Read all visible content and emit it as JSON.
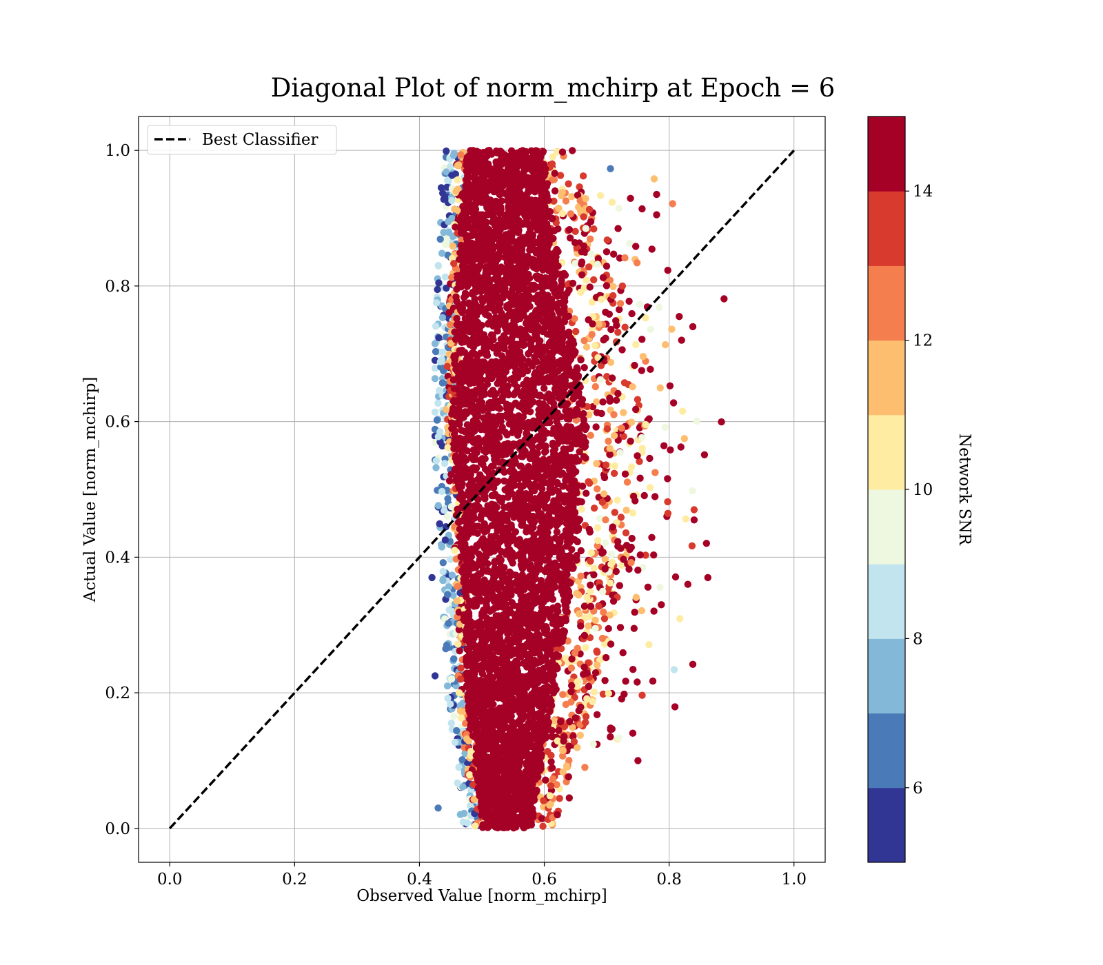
{
  "chart_data": {
    "type": "scatter",
    "title": "Diagonal Plot of norm_mchirp at Epoch = 6",
    "xlabel": "Observed Value [norm_mchirp]",
    "ylabel": "Actual Value [norm_mchirp]",
    "xlim": [
      -0.05,
      1.05
    ],
    "ylim": [
      -0.05,
      1.05
    ],
    "x_ticks": [
      "0.0",
      "0.2",
      "0.4",
      "0.6",
      "0.8",
      "1.0"
    ],
    "y_ticks": [
      "0.0",
      "0.2",
      "0.4",
      "0.6",
      "0.8",
      "1.0"
    ],
    "grid": true,
    "legend": {
      "placement": "top-left",
      "entries": [
        {
          "label": "Best Classifier",
          "style": "dashed-black-line"
        }
      ]
    },
    "reference_line": {
      "name": "Best Classifier",
      "x": [
        0.0,
        1.0
      ],
      "y": [
        0.0,
        1.0
      ],
      "color": "#000000",
      "style": "dashed"
    },
    "colorbar": {
      "label": "Network SNR",
      "range": [
        5,
        15
      ],
      "ticks": [
        "6",
        "8",
        "10",
        "12",
        "14"
      ],
      "bin_colors": [
        "#313695",
        "#4a7ab7",
        "#84b8d8",
        "#c1e4ef",
        "#eef8e0",
        "#feeca2",
        "#fdbe70",
        "#f57e4e",
        "#d83a2e",
        "#a50026"
      ]
    },
    "scatter_summary": {
      "description_points": [
        {
          "region": "dense core",
          "x_center_by_y": [
            [
              0.0,
              0.54
            ],
            [
              0.2,
              0.545
            ],
            [
              0.4,
              0.56
            ],
            [
              0.6,
              0.56
            ],
            [
              0.8,
              0.545
            ],
            [
              1.0,
              0.535
            ]
          ],
          "x_halfwidth_by_y": [
            [
              0.0,
              0.05
            ],
            [
              0.2,
              0.09
            ],
            [
              0.4,
              0.12
            ],
            [
              0.6,
              0.14
            ],
            [
              0.8,
              0.11
            ],
            [
              1.0,
              0.08
            ]
          ],
          "snr": 15
        },
        {
          "region": "low-SNR left edge",
          "x_range": [
            0.42,
            0.47
          ],
          "y_range": [
            0.0,
            1.0
          ],
          "snr_range": [
            5,
            9
          ]
        },
        {
          "region": "right tail outliers",
          "x_range": [
            0.65,
            0.86
          ],
          "y_range": [
            0.02,
            0.97
          ],
          "snr_range": [
            10,
            15
          ]
        }
      ],
      "outliers": [
        {
          "x": 0.862,
          "y": 0.37,
          "snr": 15
        },
        {
          "x": 0.838,
          "y": 0.74,
          "snr": 14
        },
        {
          "x": 0.82,
          "y": 0.72,
          "snr": 14
        },
        {
          "x": 0.84,
          "y": 0.47,
          "snr": 13
        },
        {
          "x": 0.84,
          "y": 0.455,
          "snr": 15
        },
        {
          "x": 0.83,
          "y": 0.36,
          "snr": 14
        },
        {
          "x": 0.838,
          "y": 0.242,
          "snr": 14
        },
        {
          "x": 0.808,
          "y": 0.234,
          "snr": 8
        },
        {
          "x": 0.78,
          "y": 0.935,
          "snr": 15
        },
        {
          "x": 0.78,
          "y": 0.905,
          "snr": 15
        },
        {
          "x": 0.776,
          "y": 0.958,
          "snr": 11
        },
        {
          "x": 0.706,
          "y": 0.973,
          "snr": 6
        },
        {
          "x": 0.621,
          "y": 0.02,
          "snr": 14
        },
        {
          "x": 0.64,
          "y": 0.045,
          "snr": 15
        },
        {
          "x": 0.665,
          "y": 0.09,
          "snr": 12
        },
        {
          "x": 0.75,
          "y": 0.1,
          "snr": 15
        },
        {
          "x": 0.43,
          "y": 0.03,
          "snr": 6
        },
        {
          "x": 0.42,
          "y": 0.37,
          "snr": 5
        },
        {
          "x": 0.425,
          "y": 0.225,
          "snr": 5
        },
        {
          "x": 0.435,
          "y": 0.945,
          "snr": 5
        }
      ]
    }
  }
}
